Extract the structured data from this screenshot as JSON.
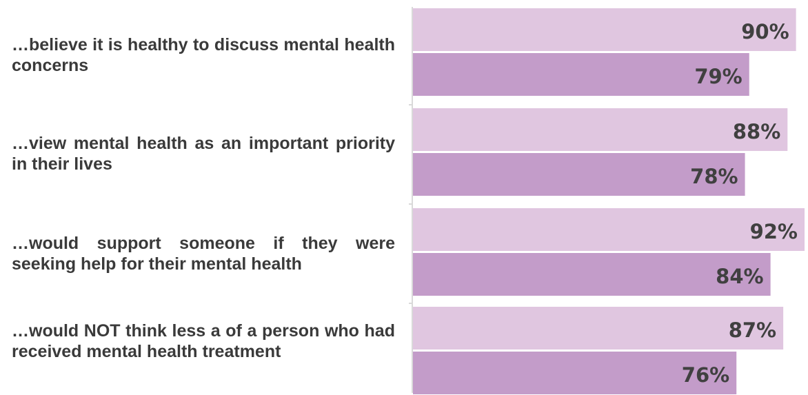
{
  "chart_data": {
    "type": "bar",
    "orientation": "horizontal",
    "categories": [
      "…believe it is healthy to discuss mental health concerns",
      "…view mental health as an important priority in their lives",
      "…would support someone if they  were seeking help for their mental health",
      "…would NOT think less a of a person who had received mental health treatment"
    ],
    "series": [
      {
        "values": [
          90,
          88,
          92,
          87
        ],
        "labels": [
          "90%",
          "88%",
          "92%",
          "87%"
        ],
        "color": "#e0c6e0"
      },
      {
        "values": [
          79,
          78,
          84,
          76
        ],
        "labels": [
          "79%",
          "78%",
          "84%",
          "76%"
        ],
        "color": "#c39cc9"
      }
    ],
    "xlim": [
      0,
      92
    ],
    "grid": false,
    "legend": "none",
    "title": "",
    "xlabel": "",
    "ylabel": ""
  }
}
